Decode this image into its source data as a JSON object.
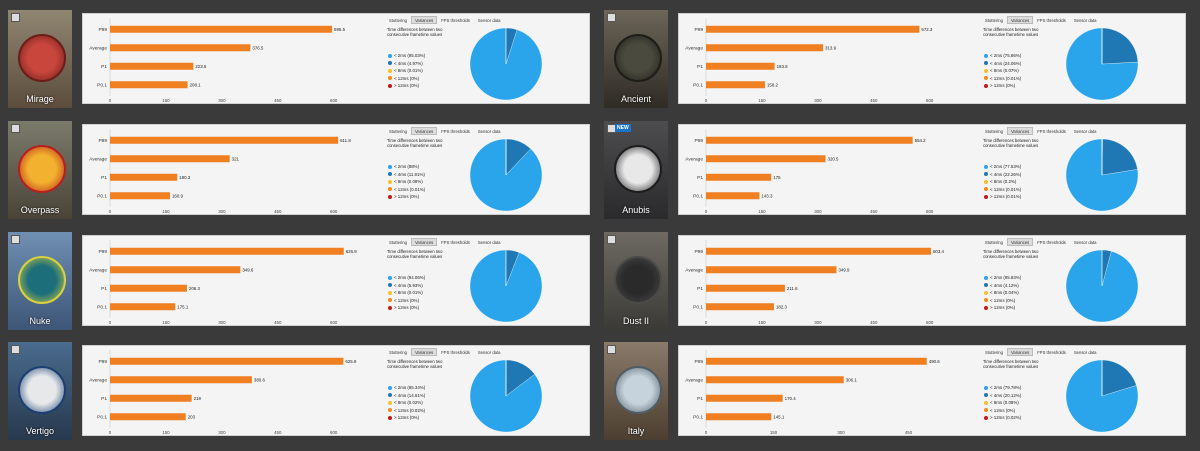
{
  "ui": {
    "tabs": [
      "Stuttering",
      "Variances",
      "FPS thresholds",
      "Sensor data"
    ],
    "active_tab": "Variances",
    "variance_description": "Time differences between two consecutive frametime values",
    "x_axis_label": "FPS",
    "bucket_labels": [
      "< 2ms",
      "< 4ms",
      "< 8ms",
      "< 12ms",
      "> 12ms"
    ],
    "bucket_colors": [
      "#2aa4ea",
      "#1f78b4",
      "#f2c12e",
      "#f28a1b",
      "#c8171b"
    ],
    "bar_color": "#f07f22",
    "new_badge": "NEW"
  },
  "chart_data": [
    {
      "type": "bar",
      "map": "Mirage",
      "new": false,
      "categories": [
        "P99",
        "Average",
        "P1",
        "P0.1"
      ],
      "values": [
        595.5,
        376.5,
        223.5,
        208.1
      ],
      "value_labels": [
        "595.5",
        "376.5",
        "223.5",
        "208.1"
      ],
      "xticks": [
        0,
        150,
        300,
        450,
        600
      ],
      "xlim": [
        0,
        700
      ],
      "xlabel": "FPS",
      "variances": {
        "labels": [
          "95.03%",
          "4.97%",
          "0.01%",
          "0%",
          "0%"
        ],
        "values": [
          95.03,
          4.97,
          0.01,
          0,
          0
        ]
      }
    },
    {
      "type": "bar",
      "map": "Ancient",
      "new": false,
      "categories": [
        "P99",
        "Average",
        "P1",
        "P0.1"
      ],
      "values": [
        572.3,
        313.9,
        183.9,
        158.2
      ],
      "value_labels": [
        "572.3",
        "313.9",
        "183.9",
        "158.2"
      ],
      "xticks": [
        0,
        150,
        300,
        450,
        600
      ],
      "xlim": [
        0,
        700
      ],
      "xlabel": "FPS",
      "variances": {
        "labels": [
          "75.86%",
          "24.06%",
          "0.07%",
          "0.01%",
          "0%"
        ],
        "values": [
          75.86,
          24.06,
          0.07,
          0.01,
          0
        ]
      }
    },
    {
      "type": "bar",
      "map": "Overpass",
      "new": false,
      "categories": [
        "P99",
        "Average",
        "P1",
        "P0.1"
      ],
      "values": [
        611.8,
        321,
        180.3,
        160.9
      ],
      "value_labels": [
        "611.8",
        "321",
        "180.3",
        "160.9"
      ],
      "xticks": [
        0,
        150,
        300,
        450,
        600
      ],
      "xlim": [
        0,
        700
      ],
      "xlabel": "FPS",
      "variances": {
        "labels": [
          "88%",
          "11.91%",
          "0.08%",
          "0.01%",
          "0%"
        ],
        "values": [
          88,
          11.91,
          0.08,
          0.01,
          0
        ]
      }
    },
    {
      "type": "bar",
      "map": "Anubis",
      "new": true,
      "categories": [
        "P99",
        "Average",
        "P1",
        "P0.1"
      ],
      "values": [
        554.2,
        320.5,
        175,
        143.3
      ],
      "value_labels": [
        "554.2",
        "320.5",
        "175",
        "143.3"
      ],
      "xticks": [
        0,
        150,
        300,
        450,
        600
      ],
      "xlim": [
        0,
        700
      ],
      "xlabel": "FPS",
      "variances": {
        "labels": [
          "77.53%",
          "22.26%",
          "0.2%",
          "0.01%",
          "0.01%"
        ],
        "values": [
          77.53,
          22.26,
          0.2,
          0.01,
          0.01
        ]
      }
    },
    {
      "type": "bar",
      "map": "Nuke",
      "new": false,
      "categories": [
        "P99",
        "Average",
        "P1",
        "P0.1"
      ],
      "values": [
        626.9,
        349.6,
        206.3,
        175.1
      ],
      "value_labels": [
        "626.9",
        "349.6",
        "206.3",
        "175.1"
      ],
      "xticks": [
        0,
        150,
        300,
        450,
        600
      ],
      "xlim": [
        0,
        700
      ],
      "xlabel": "FPS",
      "variances": {
        "labels": [
          "94.06%",
          "5.93%",
          "0.01%",
          "0%",
          "0%"
        ],
        "values": [
          94.06,
          5.93,
          0.01,
          0,
          0
        ]
      }
    },
    {
      "type": "bar",
      "map": "Dust II",
      "new": false,
      "categories": [
        "P99",
        "Average",
        "P1",
        "P0.1"
      ],
      "values": [
        603.4,
        349.9,
        211.6,
        182.3
      ],
      "value_labels": [
        "603.4",
        "349.9",
        "211.6",
        "182.3"
      ],
      "xticks": [
        0,
        150,
        300,
        450,
        600
      ],
      "xlim": [
        0,
        700
      ],
      "xlabel": "FPS",
      "variances": {
        "labels": [
          "95.83%",
          "4.12%",
          "0.04%",
          "0%",
          "0%"
        ],
        "values": [
          95.83,
          4.12,
          0.04,
          0,
          0
        ]
      }
    },
    {
      "type": "bar",
      "map": "Vertigo",
      "new": false,
      "categories": [
        "P99",
        "Average",
        "P1",
        "P0.1"
      ],
      "values": [
        625.9,
        380.6,
        219,
        203
      ],
      "value_labels": [
        "625.9",
        "380.6",
        "219",
        "203"
      ],
      "xticks": [
        0,
        150,
        300,
        450,
        600
      ],
      "xlim": [
        0,
        700
      ],
      "xlabel": "FPS",
      "variances": {
        "labels": [
          "85.34%",
          "14.61%",
          "0.02%",
          "0.02%",
          "0%"
        ],
        "values": [
          85.34,
          14.61,
          0.02,
          0.02,
          0
        ]
      }
    },
    {
      "type": "bar",
      "map": "Italy",
      "new": false,
      "categories": [
        "P99",
        "Average",
        "P1",
        "P0.1"
      ],
      "values": [
        490.6,
        306.1,
        170.4,
        145.1
      ],
      "value_labels": [
        "490.6",
        "306.1",
        "170.4",
        "145.1"
      ],
      "xticks": [
        0,
        150,
        300,
        450
      ],
      "xlim": [
        0,
        580
      ],
      "xlabel": "FPS",
      "variances": {
        "labels": [
          "79.78%",
          "20.12%",
          "0.08%",
          "0%",
          "0.02%"
        ],
        "values": [
          79.78,
          20.12,
          0.08,
          0,
          0.02
        ]
      }
    }
  ]
}
